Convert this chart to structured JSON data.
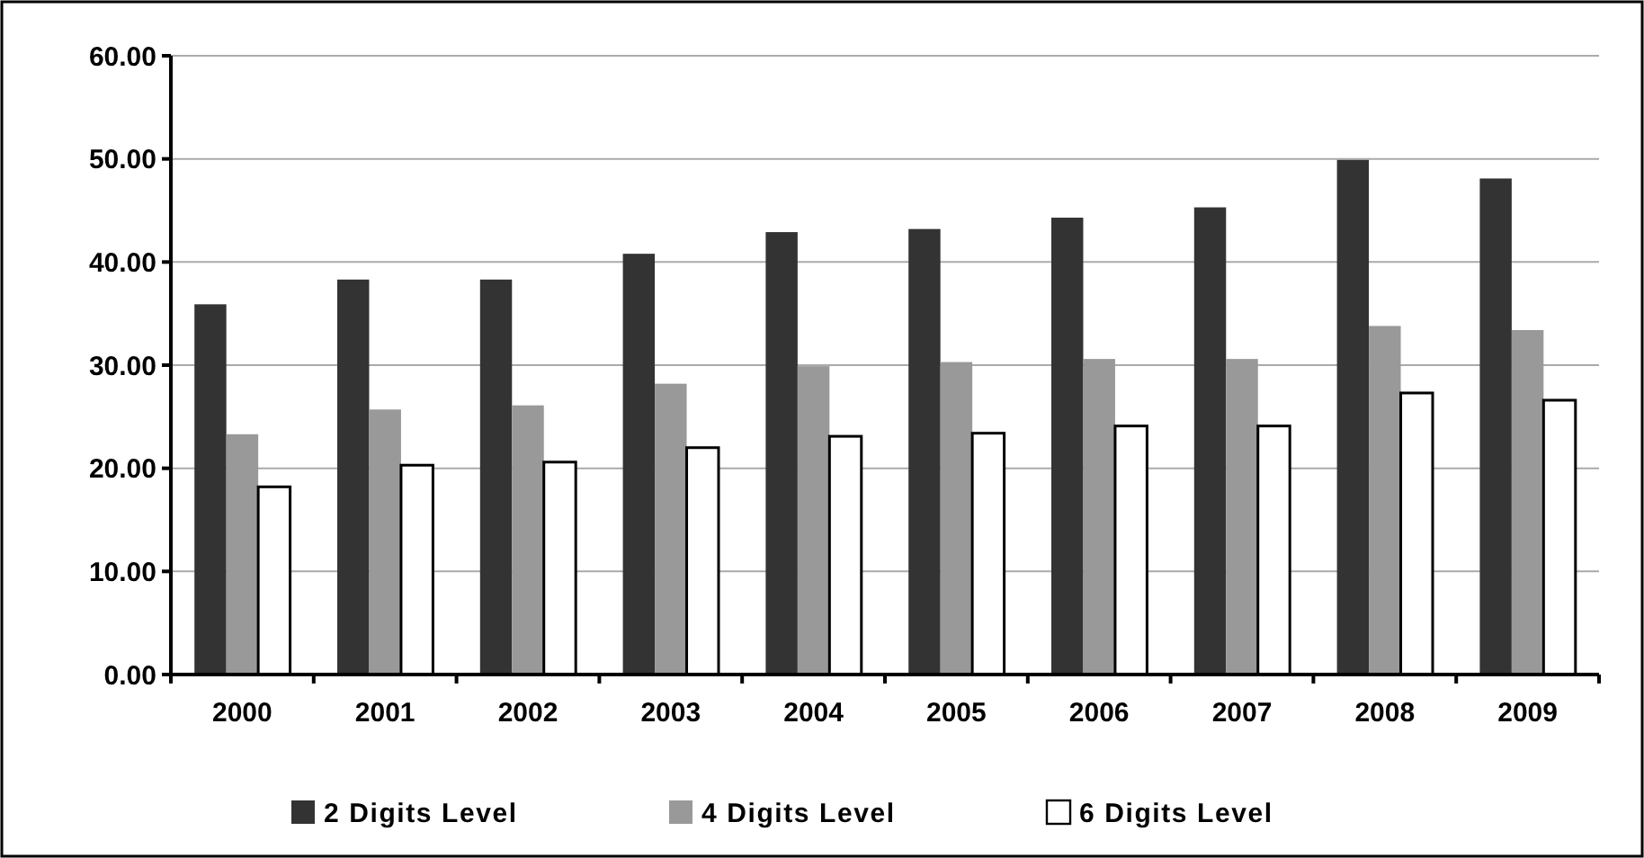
{
  "chart_data": {
    "type": "bar",
    "categories": [
      "2000",
      "2001",
      "2002",
      "2003",
      "2004",
      "2005",
      "2006",
      "2007",
      "2008",
      "2009"
    ],
    "series": [
      {
        "name": "2 Digits Level",
        "color": "#333333",
        "values": [
          35.9,
          38.3,
          38.3,
          40.8,
          42.9,
          43.2,
          44.3,
          45.3,
          49.9,
          48.1
        ]
      },
      {
        "name": "4 Digits Level",
        "color": "#999999",
        "values": [
          23.3,
          25.7,
          26.1,
          28.2,
          29.9,
          30.3,
          30.6,
          30.6,
          33.8,
          33.4
        ]
      },
      {
        "name": "6 Digits Level",
        "color": "#ffffff",
        "values": [
          18.2,
          20.3,
          20.6,
          22.0,
          23.1,
          23.4,
          24.1,
          24.1,
          27.3,
          26.6
        ]
      }
    ],
    "ylim": [
      0,
      60
    ],
    "yticks": [
      {
        "value": 0,
        "label": "0.00"
      },
      {
        "value": 10,
        "label": "10.00"
      },
      {
        "value": 20,
        "label": "20.00"
      },
      {
        "value": 30,
        "label": "30.00"
      },
      {
        "value": 40,
        "label": "40.00"
      },
      {
        "value": 50,
        "label": "50.00"
      },
      {
        "value": 60,
        "label": "60.00"
      }
    ],
    "grid": "y",
    "legend": "bottom"
  }
}
